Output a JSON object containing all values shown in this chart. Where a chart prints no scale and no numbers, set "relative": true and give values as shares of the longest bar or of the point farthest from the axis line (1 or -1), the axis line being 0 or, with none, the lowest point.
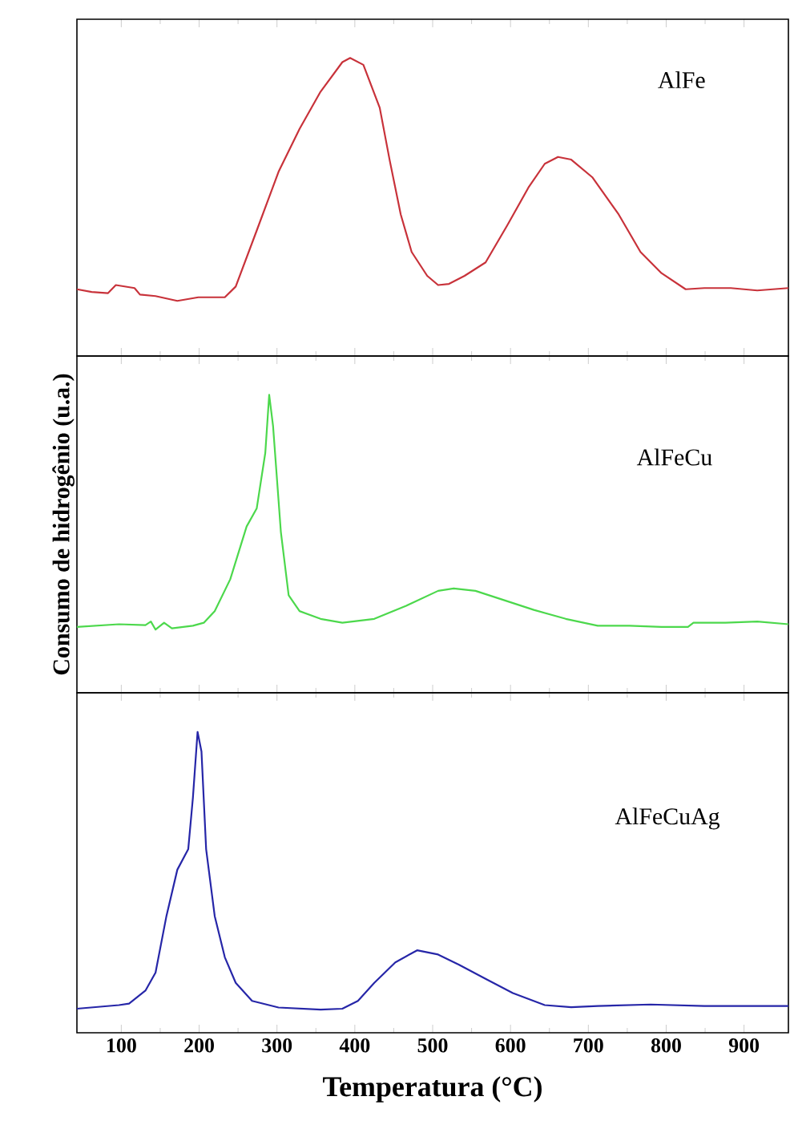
{
  "chart_data": [
    {
      "type": "line",
      "relative": true,
      "tick_labels": false,
      "x": [
        43,
        62,
        83,
        93,
        117,
        124,
        144,
        172,
        199,
        233,
        247,
        274,
        302,
        329,
        356,
        384,
        394,
        411,
        432,
        445,
        459,
        473,
        493,
        507,
        521,
        541,
        568,
        596,
        623,
        644,
        661,
        678,
        705,
        739,
        767,
        794,
        825,
        849,
        883,
        917,
        957
      ],
      "series": [
        {
          "name": "AlFe",
          "color": "#c8323a",
          "values": [
            0.224,
            0.215,
            0.211,
            0.238,
            0.228,
            0.206,
            0.201,
            0.185,
            0.197,
            0.197,
            0.233,
            0.421,
            0.618,
            0.762,
            0.887,
            0.986,
            1.0,
            0.977,
            0.833,
            0.654,
            0.475,
            0.349,
            0.269,
            0.238,
            0.242,
            0.269,
            0.314,
            0.439,
            0.565,
            0.645,
            0.668,
            0.659,
            0.6,
            0.475,
            0.349,
            0.278,
            0.224,
            0.228,
            0.228,
            0.22,
            0.228
          ]
        }
      ],
      "xlim": [
        43,
        957
      ],
      "xticks": [
        100,
        200,
        300,
        400,
        500,
        600,
        700,
        800,
        900,
        {
          "value": 150,
          "label": null
        },
        {
          "value": 250,
          "label": null
        },
        {
          "value": 350,
          "label": null
        },
        {
          "value": 450,
          "label": null
        },
        {
          "value": 550,
          "label": null
        },
        {
          "value": 650,
          "label": null
        },
        {
          "value": 750,
          "label": null
        },
        {
          "value": 850,
          "label": null
        }
      ]
    },
    {
      "type": "line",
      "relative": true,
      "tick_labels": false,
      "ylabel": "Consumo de hidrogênio (u.a.)",
      "x": [
        43,
        97,
        131,
        138,
        144,
        155,
        165,
        192,
        206,
        220,
        240,
        261,
        274,
        285,
        290,
        295,
        305,
        315,
        329,
        356,
        384,
        425,
        466,
        507,
        527,
        555,
        589,
        630,
        671,
        712,
        753,
        794,
        828,
        835,
        876,
        917,
        957
      ],
      "series": [
        {
          "name": "AlFeCu",
          "color": "#4cd84c",
          "values": [
            0.221,
            0.23,
            0.227,
            0.239,
            0.212,
            0.235,
            0.216,
            0.225,
            0.235,
            0.274,
            0.381,
            0.558,
            0.619,
            0.805,
            1.0,
            0.894,
            0.54,
            0.327,
            0.274,
            0.248,
            0.235,
            0.248,
            0.292,
            0.342,
            0.35,
            0.342,
            0.313,
            0.278,
            0.248,
            0.225,
            0.225,
            0.221,
            0.221,
            0.235,
            0.235,
            0.239,
            0.23
          ]
        }
      ],
      "xlim": [
        43,
        957
      ],
      "xticks": [
        100,
        200,
        300,
        400,
        500,
        600,
        700,
        800,
        900,
        {
          "value": 150,
          "label": null
        },
        {
          "value": 250,
          "label": null
        },
        {
          "value": 350,
          "label": null
        },
        {
          "value": 450,
          "label": null
        },
        {
          "value": 550,
          "label": null
        },
        {
          "value": 650,
          "label": null
        },
        {
          "value": 750,
          "label": null
        },
        {
          "value": 850,
          "label": null
        }
      ]
    },
    {
      "type": "line",
      "relative": true,
      "tick_labels": "x",
      "xlabel": "Temperatura (°C)",
      "x": [
        43,
        97,
        110,
        131,
        144,
        158,
        172,
        186,
        192,
        198,
        203,
        209,
        220,
        233,
        247,
        268,
        302,
        356,
        384,
        404,
        425,
        452,
        480,
        507,
        534,
        568,
        603,
        644,
        678,
        712,
        780,
        849,
        917,
        957
      ],
      "series": [
        {
          "name": "AlFeCuAg",
          "color": "#2626a8",
          "values": [
            0.08,
            0.092,
            0.097,
            0.14,
            0.2,
            0.388,
            0.542,
            0.61,
            0.781,
            1.0,
            0.935,
            0.61,
            0.388,
            0.251,
            0.166,
            0.106,
            0.084,
            0.077,
            0.08,
            0.106,
            0.166,
            0.234,
            0.274,
            0.26,
            0.226,
            0.179,
            0.132,
            0.092,
            0.085,
            0.089,
            0.094,
            0.089,
            0.089,
            0.089
          ]
        }
      ],
      "xlim": [
        43,
        957
      ],
      "xticks": [
        100,
        200,
        300,
        400,
        500,
        600,
        700,
        800,
        900,
        {
          "value": 150,
          "label": null
        },
        {
          "value": 250,
          "label": null
        },
        {
          "value": 350,
          "label": null
        },
        {
          "value": 450,
          "label": null
        },
        {
          "value": 550,
          "label": null
        },
        {
          "value": 650,
          "label": null
        },
        {
          "value": 750,
          "label": null
        },
        {
          "value": 850,
          "label": null
        }
      ]
    }
  ]
}
